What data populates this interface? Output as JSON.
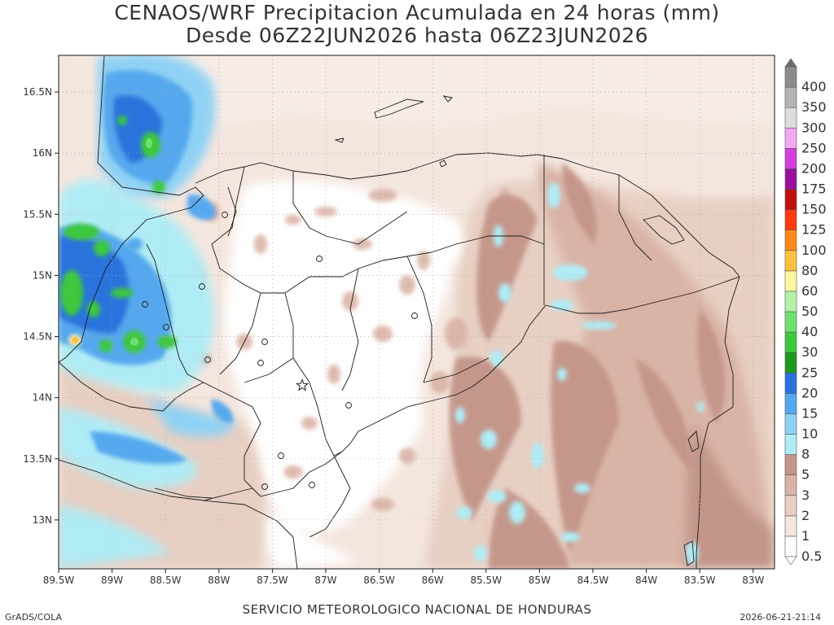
{
  "title": {
    "line1": "CENAOS/WRF Precipitacion Acumulada en 24 horas (mm)",
    "line2": "Desde 06Z22JUN2026 hasta 06Z23JUN2026"
  },
  "map": {
    "lon_range": [
      -89.5,
      -82.8
    ],
    "lat_range": [
      12.6,
      16.8
    ],
    "lon_ticks": [
      {
        "value": -89.5,
        "label": "89.5W"
      },
      {
        "value": -89,
        "label": "89W"
      },
      {
        "value": -88.5,
        "label": "88.5W"
      },
      {
        "value": -88,
        "label": "88W"
      },
      {
        "value": -87.5,
        "label": "87.5W"
      },
      {
        "value": -87,
        "label": "87W"
      },
      {
        "value": -86.5,
        "label": "86.5W"
      },
      {
        "value": -86,
        "label": "86W"
      },
      {
        "value": -85.5,
        "label": "85.5W"
      },
      {
        "value": -85,
        "label": "85W"
      },
      {
        "value": -84.5,
        "label": "84.5W"
      },
      {
        "value": -84,
        "label": "84W"
      },
      {
        "value": -83.5,
        "label": "83.5W"
      },
      {
        "value": -83,
        "label": "83W"
      }
    ],
    "lat_ticks": [
      {
        "value": 13,
        "label": "13N"
      },
      {
        "value": 13.5,
        "label": "13.5N"
      },
      {
        "value": 14,
        "label": "14N"
      },
      {
        "value": 14.5,
        "label": "14.5N"
      },
      {
        "value": 15,
        "label": "15N"
      },
      {
        "value": 15.5,
        "label": "15.5N"
      },
      {
        "value": 16,
        "label": "16N"
      },
      {
        "value": 16.5,
        "label": "16.5N"
      }
    ],
    "capital_marker": {
      "lon": -87.22,
      "lat": 14.1
    }
  },
  "colorbar": {
    "levels": [
      {
        "label": "0.5",
        "color": "#ffffff"
      },
      {
        "label": "1",
        "color": "#f4e6de"
      },
      {
        "label": "2",
        "color": "#e8cfc3"
      },
      {
        "label": "3",
        "color": "#d9b3a6"
      },
      {
        "label": "5",
        "color": "#c49589"
      },
      {
        "label": "8",
        "color": "#b0ecf5"
      },
      {
        "label": "10",
        "color": "#8fd2f5"
      },
      {
        "label": "15",
        "color": "#55a8ee"
      },
      {
        "label": "20",
        "color": "#2a73dd"
      },
      {
        "label": "25",
        "color": "#1c9a1c"
      },
      {
        "label": "30",
        "color": "#3dc83d"
      },
      {
        "label": "40",
        "color": "#6fe06f"
      },
      {
        "label": "50",
        "color": "#b5f2a8"
      },
      {
        "label": "60",
        "color": "#fff5a0"
      },
      {
        "label": "80",
        "color": "#ffc040"
      },
      {
        "label": "100",
        "color": "#ff8a1a"
      },
      {
        "label": "125",
        "color": "#ff3a10"
      },
      {
        "label": "150",
        "color": "#c01010"
      },
      {
        "label": "175",
        "color": "#9a0f9e"
      },
      {
        "label": "200",
        "color": "#d53fe0"
      },
      {
        "label": "250",
        "color": "#f4a8f4"
      },
      {
        "label": "300",
        "color": "#dcdcdc"
      },
      {
        "label": "350",
        "color": "#b4b4b4"
      },
      {
        "label": "400",
        "color": "#8c8c8c"
      }
    ],
    "top_cap_color": "#6e6e6e"
  },
  "footer": {
    "left": "GrADS/COLA",
    "center": "SERVICIO METEOROLOGICO NACIONAL DE HONDURAS",
    "right": "2026-06-21-21:14"
  }
}
